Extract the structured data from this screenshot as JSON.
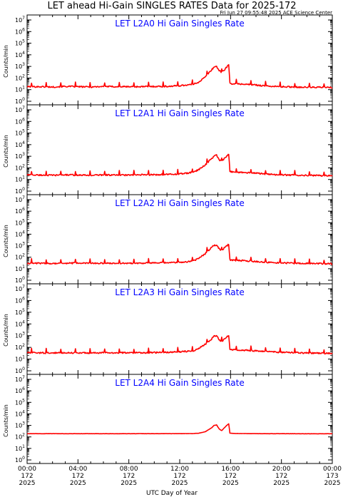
{
  "header": {
    "title": "LET ahead Hi-Gain SINGLES RATES Data for 2025-172",
    "timestamp": "Fri Jun 27 09:55:48 2025 ACE Science Center"
  },
  "colors": {
    "trace": "#ff0000",
    "panel_title": "#0000ff",
    "axis": "#000000",
    "background": "#ffffff"
  },
  "x_axis": {
    "label": "UTC Day of Year",
    "ticks": [
      {
        "time": "00:00",
        "day": "172",
        "year": "2025",
        "hour": 0
      },
      {
        "time": "04:00",
        "day": "172",
        "year": "2025",
        "hour": 4
      },
      {
        "time": "08:00",
        "day": "172",
        "year": "2025",
        "hour": 8
      },
      {
        "time": "12:00",
        "day": "172",
        "year": "2025",
        "hour": 12
      },
      {
        "time": "16:00",
        "day": "172",
        "year": "2025",
        "hour": 16
      },
      {
        "time": "20:00",
        "day": "172",
        "year": "2025",
        "hour": 20
      },
      {
        "time": "00:00",
        "day": "173",
        "year": "2025",
        "hour": 24
      }
    ]
  },
  "y_axis": {
    "label": "Counts/min",
    "scale": "log",
    "ticks": [
      {
        "base": "10",
        "exp": "0",
        "value": 1
      },
      {
        "base": "10",
        "exp": "1",
        "value": 10
      },
      {
        "base": "10",
        "exp": "2",
        "value": 100
      },
      {
        "base": "10",
        "exp": "3",
        "value": 1000
      },
      {
        "base": "10",
        "exp": "4",
        "value": 10000
      },
      {
        "base": "10",
        "exp": "5",
        "value": 100000
      },
      {
        "base": "10",
        "exp": "6",
        "value": 1000000
      },
      {
        "base": "10",
        "exp": "7",
        "value": 10000000
      }
    ]
  },
  "chart_data": [
    {
      "type": "line",
      "title": "LET L2A0 Hi Gain Singles Rate",
      "xlabel": "",
      "ylabel": "Counts/min",
      "xlim": [
        0,
        24
      ],
      "ylim": [
        1,
        10000000
      ],
      "yscale": "log",
      "x": [
        0,
        1,
        2,
        3,
        4,
        5,
        6,
        7,
        8,
        9,
        10,
        11,
        12,
        13,
        13.5,
        14,
        14.5,
        14.7,
        14.9,
        15.1,
        15.3,
        15.5,
        15.7,
        15.85,
        15.95,
        16.2,
        17,
        18,
        19,
        20,
        21,
        22,
        23,
        24
      ],
      "y": [
        18,
        18,
        17,
        19,
        18,
        17,
        19,
        18,
        18,
        18,
        19,
        19,
        22,
        28,
        45,
        120,
        500,
        900,
        1000,
        450,
        300,
        500,
        900,
        1400,
        35,
        32,
        30,
        25,
        20,
        18,
        17,
        16,
        16,
        15
      ]
    },
    {
      "type": "line",
      "title": "LET L2A1 Hi Gain Singles Rate",
      "xlabel": "",
      "ylabel": "Counts/min",
      "xlim": [
        0,
        24
      ],
      "ylim": [
        1,
        10000000
      ],
      "yscale": "log",
      "x": [
        0,
        1,
        2,
        3,
        4,
        5,
        6,
        7,
        8,
        9,
        10,
        11,
        12,
        13,
        13.5,
        14,
        14.5,
        14.7,
        14.9,
        15.1,
        15.3,
        15.5,
        15.7,
        15.85,
        15.95,
        16.2,
        17,
        18,
        19,
        20,
        21,
        22,
        23,
        24
      ],
      "y": [
        25,
        24,
        23,
        25,
        24,
        23,
        25,
        24,
        24,
        25,
        26,
        27,
        30,
        40,
        70,
        180,
        600,
        1100,
        1200,
        500,
        350,
        600,
        1000,
        1500,
        50,
        45,
        40,
        35,
        28,
        25,
        24,
        23,
        22,
        21
      ]
    },
    {
      "type": "line",
      "title": "LET L2A2 Hi Gain Singles Rate",
      "xlabel": "",
      "ylabel": "Counts/min",
      "xlim": [
        0,
        24
      ],
      "ylim": [
        1,
        10000000
      ],
      "yscale": "log",
      "x": [
        0,
        1,
        2,
        3,
        4,
        5,
        6,
        7,
        8,
        9,
        10,
        11,
        12,
        13,
        13.5,
        14,
        14.5,
        14.7,
        14.9,
        15.1,
        15.3,
        15.5,
        15.7,
        15.85,
        15.95,
        16.2,
        17,
        18,
        19,
        20,
        21,
        22,
        23,
        24
      ],
      "y": [
        30,
        30,
        29,
        30,
        31,
        30,
        30,
        30,
        30,
        31,
        32,
        33,
        36,
        45,
        80,
        200,
        700,
        1100,
        1200,
        550,
        380,
        650,
        1000,
        1300,
        60,
        55,
        50,
        42,
        35,
        32,
        30,
        29,
        28,
        27
      ]
    },
    {
      "type": "line",
      "title": "LET L2A3 Hi Gain Singles Rate",
      "xlabel": "",
      "ylabel": "Counts/min",
      "xlim": [
        0,
        24
      ],
      "ylim": [
        1,
        10000000
      ],
      "yscale": "log",
      "x": [
        0,
        1,
        2,
        3,
        4,
        5,
        6,
        7,
        8,
        9,
        10,
        11,
        12,
        13,
        13.5,
        14,
        14.5,
        14.7,
        14.9,
        15.1,
        15.3,
        15.5,
        15.7,
        15.85,
        15.95,
        16.2,
        17,
        18,
        19,
        20,
        21,
        22,
        23,
        24
      ],
      "y": [
        35,
        34,
        33,
        35,
        34,
        33,
        35,
        34,
        35,
        35,
        36,
        38,
        42,
        50,
        80,
        180,
        500,
        900,
        1000,
        450,
        300,
        500,
        800,
        1100,
        70,
        65,
        58,
        50,
        42,
        38,
        35,
        33,
        32,
        30
      ]
    },
    {
      "type": "line",
      "title": "LET L2A4 Hi Gain Singles Rate",
      "xlabel": "",
      "ylabel": "Counts/min",
      "xlim": [
        0,
        24
      ],
      "ylim": [
        1,
        10000000
      ],
      "yscale": "log",
      "x": [
        0,
        1,
        2,
        3,
        4,
        5,
        6,
        7,
        8,
        9,
        10,
        11,
        12,
        13,
        13.5,
        14,
        14.5,
        14.7,
        14.9,
        15.1,
        15.3,
        15.5,
        15.7,
        15.85,
        15.95,
        16.2,
        17,
        18,
        19,
        20,
        21,
        22,
        23,
        24
      ],
      "y": [
        190,
        190,
        192,
        190,
        191,
        190,
        190,
        191,
        190,
        192,
        191,
        192,
        193,
        195,
        210,
        280,
        600,
        1000,
        1100,
        500,
        350,
        600,
        1000,
        1400,
        210,
        200,
        195,
        192,
        190,
        190,
        189,
        188,
        188,
        187
      ]
    }
  ]
}
